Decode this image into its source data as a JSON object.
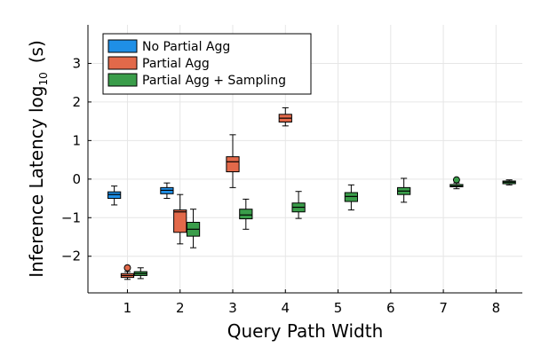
{
  "chart_data": {
    "type": "box",
    "xlabel": "Query Path Width",
    "ylabel_main": "Inference Latency log",
    "ylabel_sub": "10",
    "ylabel_unit": "(s)",
    "xlim": [
      0.25,
      8.5
    ],
    "ylim": [
      -2.95,
      4.0
    ],
    "xticks": [
      1,
      2,
      3,
      4,
      5,
      6,
      7,
      8
    ],
    "xtick_labels": [
      "1",
      "2",
      "3",
      "4",
      "5",
      "6",
      "7",
      "8"
    ],
    "yticks": [
      -2,
      -1,
      0,
      1,
      2,
      3
    ],
    "ytick_labels": [
      "−2",
      "−1",
      "0",
      "1",
      "2",
      "3"
    ],
    "legend_position": "top-left",
    "series": [
      {
        "name": "No Partial Agg",
        "color": "#1f8fe6",
        "boxes": [
          {
            "x": 1,
            "whislo": -0.67,
            "q1": -0.5,
            "med": -0.4,
            "q3": -0.33,
            "whishi": -0.18,
            "outliers": []
          },
          {
            "x": 2,
            "whislo": -0.5,
            "q1": -0.38,
            "med": -0.29,
            "q3": -0.22,
            "whishi": -0.1,
            "outliers": []
          }
        ]
      },
      {
        "name": "Partial Agg",
        "color": "#e2694a",
        "boxes": [
          {
            "x": 1,
            "whislo": -2.6,
            "q1": -2.55,
            "med": -2.5,
            "q3": -2.45,
            "whishi": -2.4,
            "outliers": [
              -2.3
            ]
          },
          {
            "x": 2,
            "whislo": -1.68,
            "q1": -1.38,
            "med": -0.85,
            "q3": -0.8,
            "whishi": -0.4,
            "outliers": []
          },
          {
            "x": 3,
            "whislo": -0.22,
            "q1": 0.19,
            "med": 0.45,
            "q3": 0.58,
            "whishi": 1.15,
            "outliers": []
          },
          {
            "x": 4,
            "whislo": 1.38,
            "q1": 1.48,
            "med": 1.58,
            "q3": 1.68,
            "whishi": 1.85,
            "outliers": []
          }
        ]
      },
      {
        "name": "Partial Agg + Sampling",
        "color": "#3a9d4a",
        "boxes": [
          {
            "x": 1,
            "whislo": -2.58,
            "q1": -2.5,
            "med": -2.45,
            "q3": -2.4,
            "whishi": -2.3,
            "outliers": []
          },
          {
            "x": 2,
            "whislo": -1.78,
            "q1": -1.48,
            "med": -1.3,
            "q3": -1.12,
            "whishi": -0.78,
            "outliers": []
          },
          {
            "x": 3,
            "whislo": -1.3,
            "q1": -1.03,
            "med": -0.93,
            "q3": -0.78,
            "whishi": -0.52,
            "outliers": []
          },
          {
            "x": 4,
            "whislo": -1.02,
            "q1": -0.85,
            "med": -0.73,
            "q3": -0.62,
            "whishi": -0.32,
            "outliers": []
          },
          {
            "x": 5,
            "whislo": -0.8,
            "q1": -0.58,
            "med": -0.45,
            "q3": -0.35,
            "whishi": -0.15,
            "outliers": []
          },
          {
            "x": 6,
            "whislo": -0.6,
            "q1": -0.4,
            "med": -0.31,
            "q3": -0.22,
            "whishi": 0.02,
            "outliers": []
          },
          {
            "x": 7,
            "whislo": -0.25,
            "q1": -0.2,
            "med": -0.18,
            "q3": -0.14,
            "whishi": -0.1,
            "outliers": [
              -0.02
            ]
          },
          {
            "x": 8,
            "whislo": -0.15,
            "q1": -0.12,
            "med": -0.08,
            "q3": -0.05,
            "whishi": -0.02,
            "outliers": []
          }
        ]
      }
    ]
  }
}
